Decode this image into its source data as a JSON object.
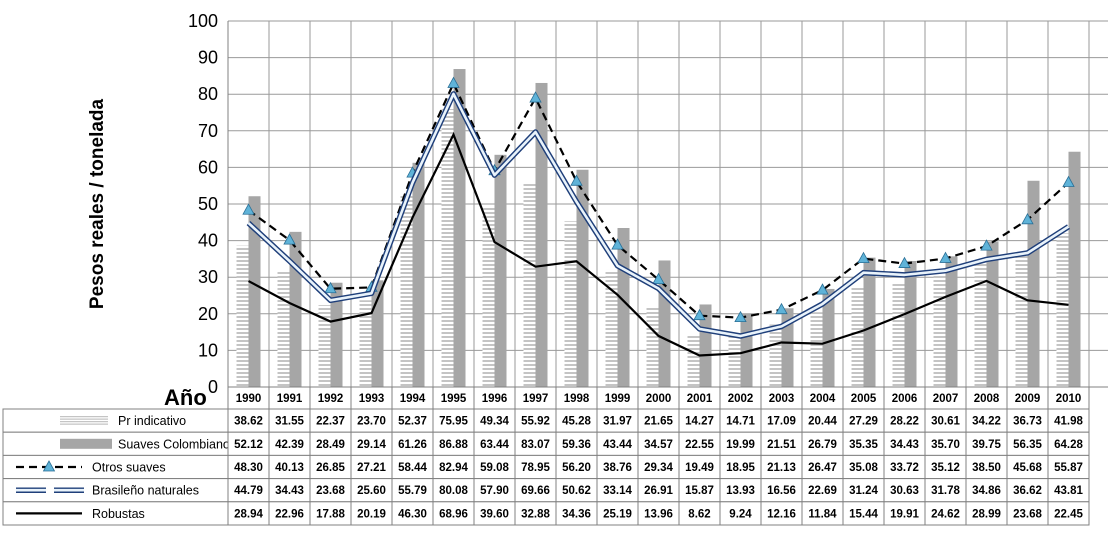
{
  "chart_data": {
    "type": "bar",
    "ylabel": "Pesos reales / tonelada",
    "xlabel": "Año",
    "ylim": [
      0,
      100
    ],
    "yticks": [
      0,
      10,
      20,
      30,
      40,
      50,
      60,
      70,
      80,
      90,
      100
    ],
    "grid": true,
    "categories": [
      "1990",
      "1991",
      "1992",
      "1993",
      "1994",
      "1995",
      "1996",
      "1997",
      "1998",
      "1999",
      "2000",
      "2001",
      "2002",
      "2003",
      "2004",
      "2005",
      "2006",
      "2007",
      "2008",
      "2009",
      "2010"
    ],
    "series": [
      {
        "name": "Pr indicativo",
        "kind": "bar",
        "style": "hatched",
        "color": "#cfcfcf",
        "values": [
          38.62,
          31.55,
          22.37,
          23.7,
          52.37,
          75.95,
          49.34,
          55.92,
          45.28,
          31.97,
          21.65,
          14.27,
          14.71,
          17.09,
          20.44,
          27.29,
          28.22,
          30.61,
          34.22,
          36.73,
          41.98
        ]
      },
      {
        "name": "Suaves Colombianos",
        "kind": "bar",
        "style": "solid",
        "color": "#a6a6a6",
        "values": [
          52.12,
          42.39,
          28.49,
          29.14,
          61.26,
          86.88,
          63.44,
          83.07,
          59.36,
          43.44,
          34.57,
          22.55,
          19.99,
          21.51,
          26.79,
          35.35,
          34.43,
          35.7,
          39.75,
          56.35,
          64.28
        ]
      },
      {
        "name": "Otros suaves",
        "kind": "line",
        "style": "dashed-triangle",
        "color": "#000000",
        "marker_color": "#5fb3d8",
        "values": [
          48.3,
          40.13,
          26.85,
          27.21,
          58.44,
          82.94,
          59.08,
          78.95,
          56.2,
          38.76,
          29.34,
          19.49,
          18.95,
          21.13,
          26.47,
          35.08,
          33.72,
          35.12,
          38.5,
          45.68,
          55.87
        ]
      },
      {
        "name": "Brasileño naturales",
        "kind": "line",
        "style": "double",
        "color": "#1f3f7a",
        "values": [
          44.79,
          34.43,
          23.68,
          25.6,
          55.79,
          80.08,
          57.9,
          69.66,
          50.62,
          33.14,
          26.91,
          15.87,
          13.93,
          16.56,
          22.69,
          31.24,
          30.63,
          31.78,
          34.86,
          36.62,
          43.81
        ]
      },
      {
        "name": "Robustas",
        "kind": "line",
        "style": "solid",
        "color": "#000000",
        "values": [
          28.94,
          22.96,
          17.88,
          20.19,
          46.3,
          68.96,
          39.6,
          32.88,
          34.36,
          25.19,
          13.96,
          8.62,
          9.24,
          12.16,
          11.84,
          15.44,
          19.91,
          24.62,
          28.99,
          23.68,
          22.45
        ]
      }
    ],
    "table": {
      "row_values": [
        [
          "38.62",
          "31.55",
          "22.37",
          "23.70",
          "52.37",
          "75.95",
          "49.34",
          "55.92",
          "45.28",
          "31.97",
          "21.65",
          "14.27",
          "14.71",
          "17.09",
          "20.44",
          "27.29",
          "28.22",
          "30.61",
          "34.22",
          "36.73",
          "41.98"
        ],
        [
          "52.12",
          "42.39",
          "28.49",
          "29.14",
          "61.26",
          "86.88",
          "63.44",
          "83.07",
          "59.36",
          "43.44",
          "34.57",
          "22.55",
          "19.99",
          "21.51",
          "26.79",
          "35.35",
          "34.43",
          "35.70",
          "39.75",
          "56.35",
          "64.28"
        ],
        [
          "48.30",
          "40.13",
          "26.85",
          "27.21",
          "58.44",
          "82.94",
          "59.08",
          "78.95",
          "56.20",
          "38.76",
          "29.34",
          "19.49",
          "18.95",
          "21.13",
          "26.47",
          "35.08",
          "33.72",
          "35.12",
          "38.50",
          "45.68",
          "55.87"
        ],
        [
          "44.79",
          "34.43",
          "23.68",
          "25.60",
          "55.79",
          "80.08",
          "57.90",
          "69.66",
          "50.62",
          "33.14",
          "26.91",
          "15.87",
          "13.93",
          "16.56",
          "22.69",
          "31.24",
          "30.63",
          "31.78",
          "34.86",
          "36.62",
          "43.81"
        ],
        [
          "28.94",
          "22.96",
          "17.88",
          "20.19",
          "46.30",
          "68.96",
          "39.60",
          "32.88",
          "34.36",
          "25.19",
          "13.96",
          "8.62",
          "9.24",
          "12.16",
          "11.84",
          "15.44",
          "19.91",
          "24.62",
          "28.99",
          "23.68",
          "22.45"
        ]
      ]
    }
  }
}
